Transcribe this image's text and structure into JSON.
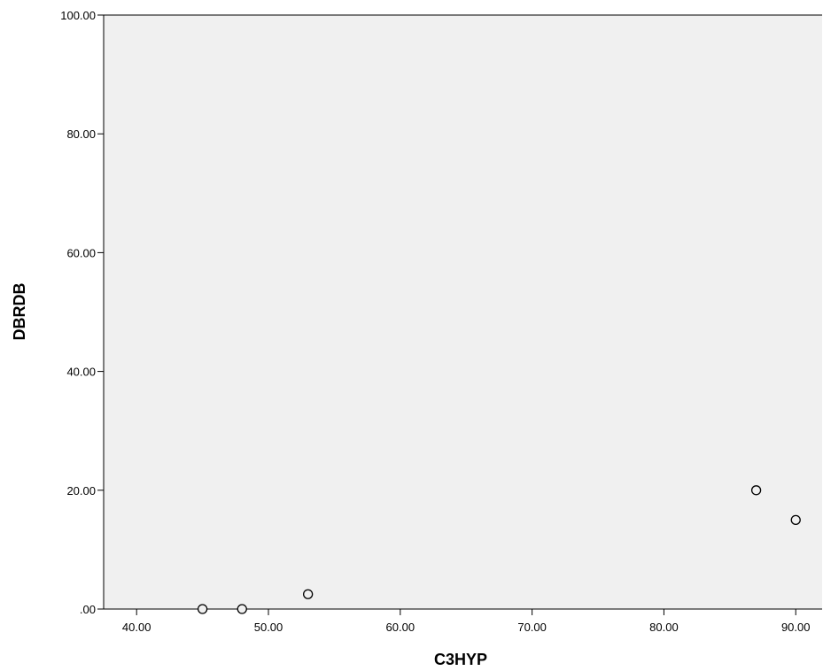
{
  "chart_data": {
    "type": "scatter",
    "title": "",
    "xlabel": "C3HYP",
    "ylabel": "DBRDB",
    "xlim": [
      37.5,
      92.0
    ],
    "ylim": [
      0,
      100
    ],
    "x_ticks": [
      "40.00",
      "50.00",
      "60.00",
      "70.00",
      "80.00",
      "90.00"
    ],
    "y_ticks": [
      ".00",
      "20.00",
      "40.00",
      "60.00",
      "80.00",
      "100.00"
    ],
    "grid": false,
    "colors": {
      "plot_background": "#f0f0f0",
      "axis": "#000000",
      "marker_stroke": "#000000",
      "marker_fill": "#f0f0f0"
    },
    "marker": "open-circle",
    "points": [
      {
        "x": 45.0,
        "y": 0.0
      },
      {
        "x": 48.0,
        "y": 0.0
      },
      {
        "x": 53.0,
        "y": 2.5
      },
      {
        "x": 87.0,
        "y": 20.0
      },
      {
        "x": 90.0,
        "y": 15.0
      }
    ]
  }
}
